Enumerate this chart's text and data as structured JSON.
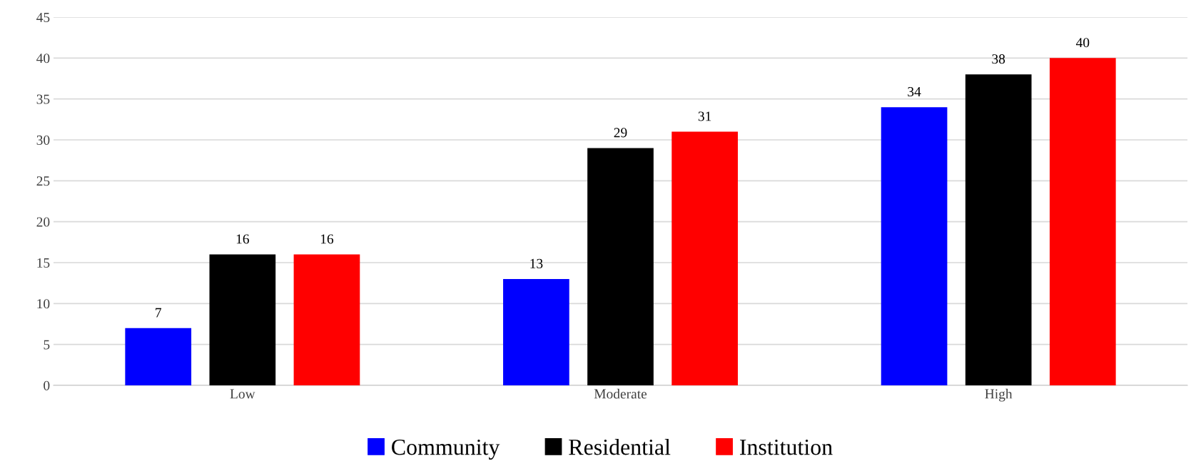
{
  "chart_data": {
    "type": "bar",
    "categories": [
      "Low",
      "Moderate",
      "High"
    ],
    "series": [
      {
        "name": "Community",
        "color": "#0000ff",
        "values": [
          7,
          13,
          34
        ]
      },
      {
        "name": "Residential",
        "color": "#000000",
        "values": [
          16,
          29,
          38
        ]
      },
      {
        "name": "Institution",
        "color": "#ff0000",
        "values": [
          16,
          31,
          40
        ]
      }
    ],
    "ylim": [
      0,
      45
    ],
    "yticks": [
      0,
      5,
      10,
      15,
      20,
      25,
      30,
      35,
      40,
      45
    ],
    "grid": "y",
    "legend": "bottom",
    "data_labels": true
  }
}
